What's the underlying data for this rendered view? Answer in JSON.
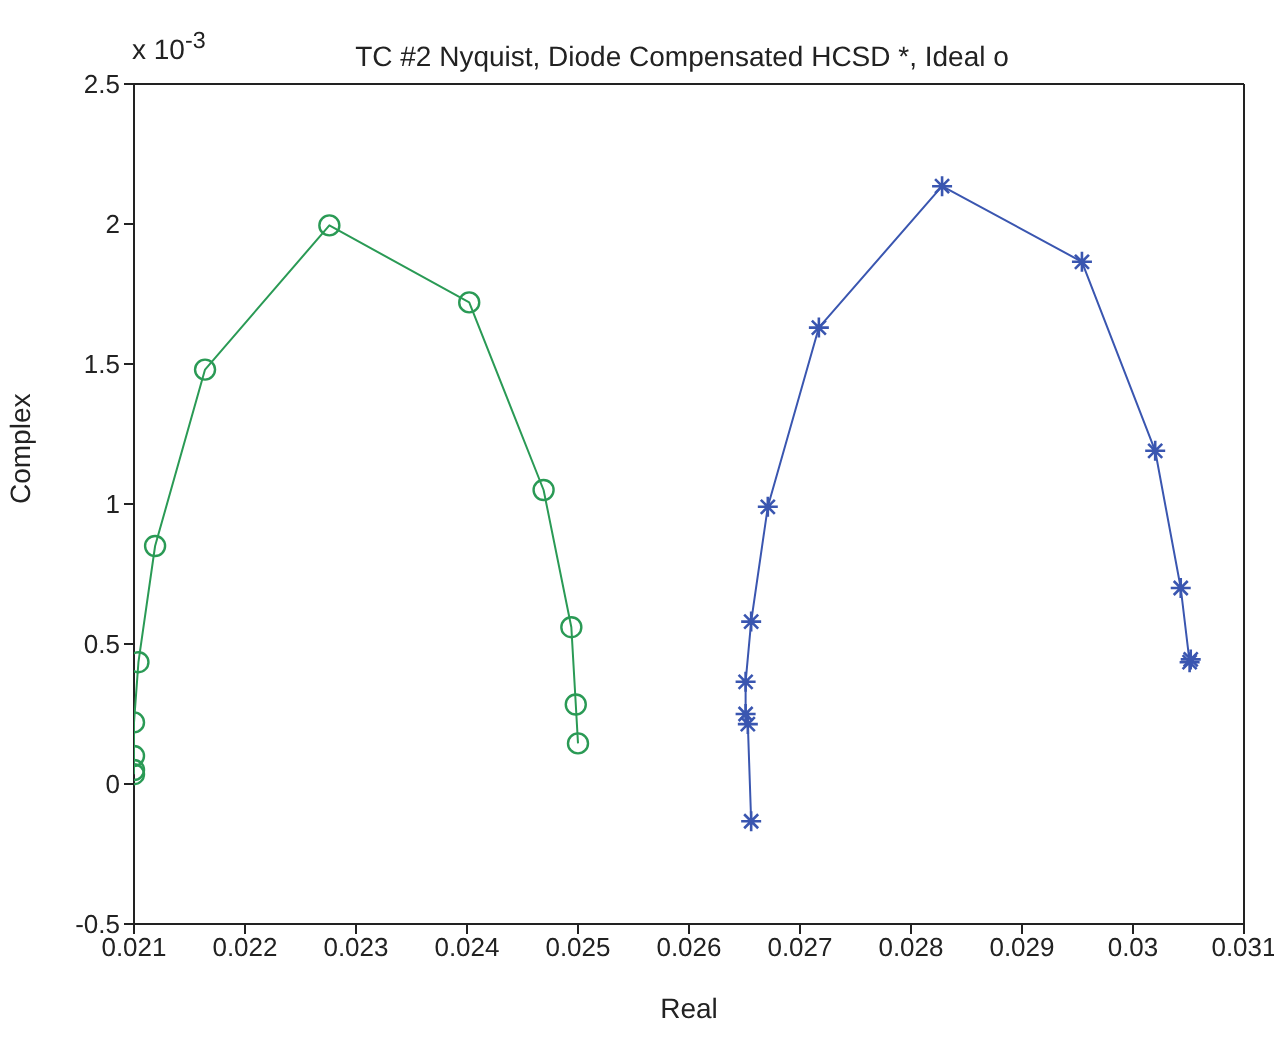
{
  "chart_data": {
    "type": "line",
    "title": "TC #2 Nyquist, Diode Compensated HCSD *, Ideal o",
    "xlabel": "Real",
    "ylabel": "Complex",
    "annotations": [
      "x 10$^{-3}$"
    ],
    "series": [
      {
        "color": "#2a9a55",
        "marker": "circle",
        "x": [
          0.021,
          0.021,
          0.021,
          0.021,
          0.02104,
          0.02119,
          0.02164,
          0.02276,
          0.02402,
          0.02469,
          0.02494,
          0.02498,
          0.025
        ],
        "values": [
          0.035,
          0.05,
          0.1,
          0.22,
          0.435,
          0.85,
          1.48,
          1.995,
          1.72,
          1.05,
          0.56,
          0.284,
          0.145
        ]
      },
      {
        "color": "#3a56b0",
        "marker": "cross",
        "x": [
          0.02656,
          0.02653,
          0.02651,
          0.02651,
          0.02656,
          0.02671,
          0.02717,
          0.02828,
          0.02954,
          0.0302,
          0.03043,
          0.03051,
          0.03052
        ],
        "values": [
          -0.133,
          0.214,
          0.25,
          0.365,
          0.58,
          0.99,
          1.63,
          2.135,
          1.865,
          1.19,
          0.7,
          0.435,
          0.445
        ]
      }
    ],
    "xlim": [
      0.021,
      0.031
    ],
    "xticks": [
      0.021,
      0.022,
      0.023,
      0.024,
      0.025,
      0.026,
      0.027,
      0.028,
      0.029,
      0.03,
      0.031
    ],
    "ylim": [
      -0.5,
      2.5
    ],
    "yticks": [
      -0.5,
      0,
      0.5,
      1,
      1.5,
      2,
      2.5
    ],
    "grid": false,
    "legend": false,
    "line_style": "solid"
  }
}
